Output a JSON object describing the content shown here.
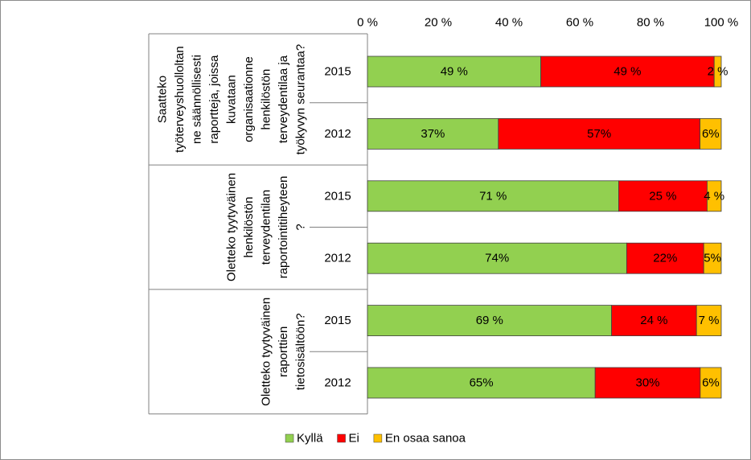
{
  "chart_data": {
    "type": "bar",
    "horizontal": true,
    "stacked_percent": true,
    "x_axis": {
      "range": [
        0,
        100
      ],
      "ticks": [
        0,
        20,
        40,
        60,
        80,
        100
      ],
      "tick_labels": [
        "0 %",
        "20 %",
        "40 %",
        "60 %",
        "80 %",
        "100 %"
      ]
    },
    "groups": [
      {
        "label_lines": [
          "Saatteko",
          "työterveyshuolloltan",
          "ne säännöllisesti",
          "raportteja, joissa",
          "kuvataan",
          "organisaationne",
          "henkilöstön",
          "terveydentilaa ja",
          "työkyvyn seurantaa?"
        ],
        "categories": [
          "2015",
          "2012"
        ]
      },
      {
        "label_lines": [
          "Oletteko tyytyväinen",
          "henkilöstön",
          "terveydentilan",
          "raportointitiheyteen",
          "?"
        ],
        "categories": [
          "2015",
          "2012"
        ]
      },
      {
        "label_lines": [
          "Oletteko tyytyväinen",
          "raporttien",
          "tietosisältöön?"
        ],
        "categories": [
          "2015",
          "2012"
        ]
      }
    ],
    "series": [
      {
        "name": "Kyllä",
        "color": "#92D050",
        "values": [
          49,
          37,
          71,
          74,
          69,
          65
        ],
        "data_labels": [
          "49 %",
          "37%",
          "71 %",
          "74%",
          "69 %",
          "65%"
        ]
      },
      {
        "name": "Ei",
        "color": "#FF0000",
        "values": [
          49,
          57,
          25,
          22,
          24,
          30
        ],
        "data_labels": [
          "49 %",
          "57%",
          "25 %",
          "22%",
          "24 %",
          "30%"
        ]
      },
      {
        "name": "En osaa sanoa",
        "color": "#FFC000",
        "values": [
          2,
          6,
          4,
          5,
          7,
          6
        ],
        "data_labels": [
          "2 %",
          "6%",
          "4 %",
          "5%",
          "7 %",
          "6%"
        ]
      }
    ],
    "legend": {
      "position": "bottom"
    }
  }
}
